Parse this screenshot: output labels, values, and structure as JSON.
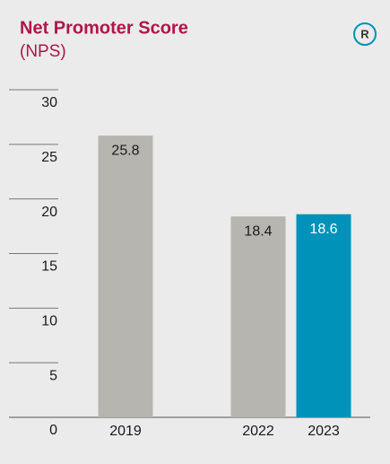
{
  "chart_data": {
    "type": "bar",
    "title": "Net Promoter Score",
    "subtitle": "(NPS)",
    "badge": "R",
    "categories": [
      "2019",
      "2022",
      "2023"
    ],
    "values": [
      25.8,
      18.4,
      18.6
    ],
    "colors": [
      "#b7b5b0",
      "#b7b5b0",
      "#0092b8"
    ],
    "value_label_colors": [
      "#1a1a1a",
      "#1a1a1a",
      "#ffffff"
    ],
    "ylim": [
      0,
      30
    ],
    "yticks": [
      0,
      5,
      10,
      15,
      20,
      25,
      30
    ]
  }
}
